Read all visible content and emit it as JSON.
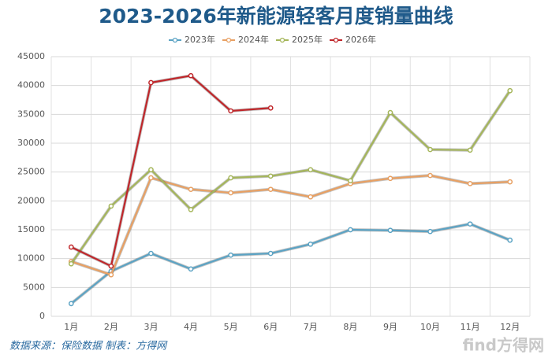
{
  "chart_data": {
    "type": "line",
    "title": "2023-2026年新能源轻客月度销量曲线",
    "categories": [
      "1月",
      "2月",
      "3月",
      "4月",
      "5月",
      "6月",
      "7月",
      "8月",
      "9月",
      "10月",
      "11月",
      "12月"
    ],
    "series": [
      {
        "name": "2023年",
        "color": "#5ba3c4",
        "values": [
          2200,
          7800,
          10900,
          8200,
          10600,
          10900,
          12500,
          15000,
          14900,
          14700,
          16000,
          13200
        ]
      },
      {
        "name": "2024年",
        "color": "#e8a063",
        "values": [
          9500,
          7200,
          24000,
          22000,
          21400,
          22000,
          20700,
          23000,
          23900,
          24400,
          23000,
          23300
        ]
      },
      {
        "name": "2025年",
        "color": "#a5b65a",
        "values": [
          9100,
          19100,
          25400,
          18500,
          24000,
          24300,
          25400,
          23500,
          35300,
          28900,
          28800,
          39100
        ]
      },
      {
        "name": "2026年",
        "color": "#c0262a",
        "values": [
          12000,
          8700,
          40500,
          41700,
          35600,
          36100,
          null,
          null,
          null,
          null,
          null,
          null
        ]
      }
    ],
    "ylim": [
      0,
      45000
    ],
    "yticks": [
      0,
      5000,
      10000,
      15000,
      20000,
      25000,
      30000,
      35000,
      40000,
      45000
    ],
    "grid": true,
    "legend": "top",
    "source": "数据来源：保险数据 制表：方得网",
    "watermark": "find方得网"
  }
}
